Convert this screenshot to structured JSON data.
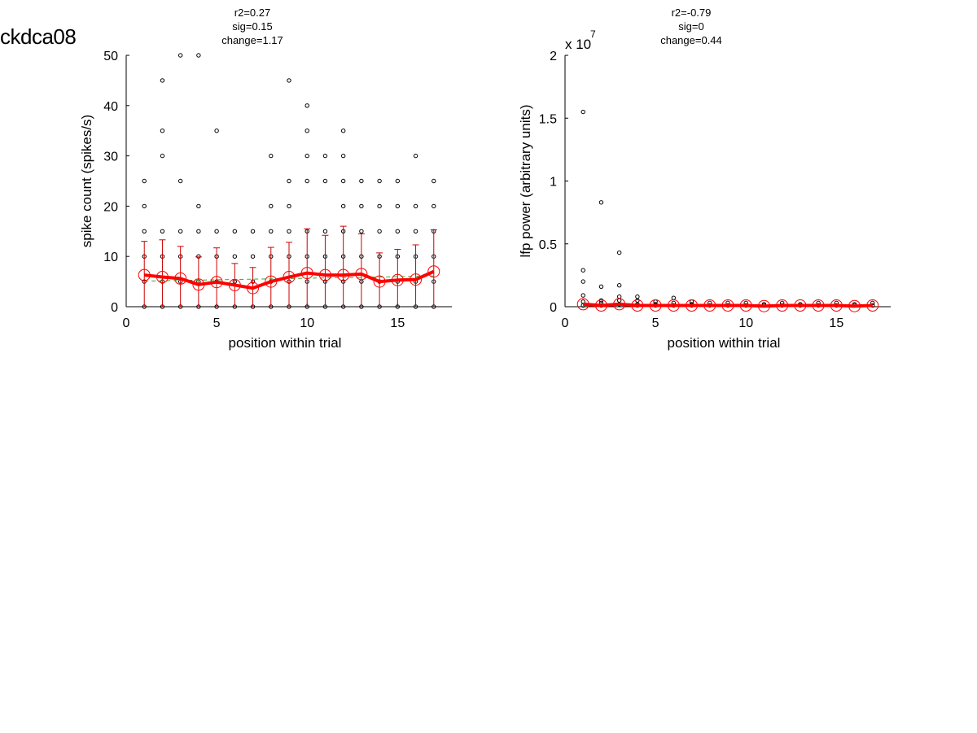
{
  "figure_title": "ckdca08",
  "chart_data": [
    {
      "type": "scatter",
      "title_lines": [
        "r2=0.27",
        "sig=0.15",
        "change=1.17"
      ],
      "xlabel": "position within trial",
      "ylabel": "spike count (spikes/s)",
      "xlim": [
        0,
        18
      ],
      "ylim": [
        0,
        50
      ],
      "xticks": [
        0,
        5,
        10,
        15
      ],
      "yticks": [
        0,
        10,
        20,
        30,
        40,
        50
      ],
      "xtick_labels": [
        "0",
        "5",
        "10",
        "15"
      ],
      "ytick_labels": [
        "0",
        "10",
        "20",
        "30",
        "40",
        "50"
      ],
      "exponent_label": "",
      "grid": false,
      "colors": {
        "points": "#000000",
        "mean": "#ff0000",
        "errorbar": "#cc0000",
        "fit": "#33aa33"
      },
      "points": [
        [
          1,
          0
        ],
        [
          1,
          5
        ],
        [
          1,
          10
        ],
        [
          1,
          15
        ],
        [
          1,
          20
        ],
        [
          1,
          25
        ],
        [
          2,
          0
        ],
        [
          2,
          5
        ],
        [
          2,
          10
        ],
        [
          2,
          15
        ],
        [
          2,
          30
        ],
        [
          2,
          35
        ],
        [
          2,
          45
        ],
        [
          3,
          0
        ],
        [
          3,
          5
        ],
        [
          3,
          10
        ],
        [
          3,
          15
        ],
        [
          3,
          25
        ],
        [
          3,
          50
        ],
        [
          4,
          0
        ],
        [
          4,
          5
        ],
        [
          4,
          10
        ],
        [
          4,
          15
        ],
        [
          4,
          20
        ],
        [
          4,
          50
        ],
        [
          5,
          0
        ],
        [
          5,
          5
        ],
        [
          5,
          10
        ],
        [
          5,
          15
        ],
        [
          5,
          35
        ],
        [
          6,
          0
        ],
        [
          6,
          5
        ],
        [
          6,
          10
        ],
        [
          6,
          15
        ],
        [
          7,
          0
        ],
        [
          7,
          5
        ],
        [
          7,
          10
        ],
        [
          7,
          15
        ],
        [
          8,
          0
        ],
        [
          8,
          5
        ],
        [
          8,
          10
        ],
        [
          8,
          15
        ],
        [
          8,
          20
        ],
        [
          8,
          30
        ],
        [
          9,
          0
        ],
        [
          9,
          5
        ],
        [
          9,
          10
        ],
        [
          9,
          15
        ],
        [
          9,
          20
        ],
        [
          9,
          25
        ],
        [
          9,
          45
        ],
        [
          10,
          0
        ],
        [
          10,
          5
        ],
        [
          10,
          10
        ],
        [
          10,
          15
        ],
        [
          10,
          25
        ],
        [
          10,
          30
        ],
        [
          10,
          35
        ],
        [
          10,
          40
        ],
        [
          11,
          0
        ],
        [
          11,
          5
        ],
        [
          11,
          10
        ],
        [
          11,
          15
        ],
        [
          11,
          25
        ],
        [
          11,
          30
        ],
        [
          12,
          0
        ],
        [
          12,
          5
        ],
        [
          12,
          10
        ],
        [
          12,
          15
        ],
        [
          12,
          20
        ],
        [
          12,
          25
        ],
        [
          12,
          30
        ],
        [
          12,
          35
        ],
        [
          13,
          0
        ],
        [
          13,
          5
        ],
        [
          13,
          10
        ],
        [
          13,
          15
        ],
        [
          13,
          20
        ],
        [
          13,
          25
        ],
        [
          14,
          0
        ],
        [
          14,
          5
        ],
        [
          14,
          10
        ],
        [
          14,
          15
        ],
        [
          14,
          20
        ],
        [
          14,
          25
        ],
        [
          15,
          0
        ],
        [
          15,
          5
        ],
        [
          15,
          10
        ],
        [
          15,
          15
        ],
        [
          15,
          20
        ],
        [
          15,
          25
        ],
        [
          16,
          0
        ],
        [
          16,
          5
        ],
        [
          16,
          10
        ],
        [
          16,
          15
        ],
        [
          16,
          20
        ],
        [
          16,
          30
        ],
        [
          17,
          0
        ],
        [
          17,
          5
        ],
        [
          17,
          10
        ],
        [
          17,
          15
        ],
        [
          17,
          20
        ],
        [
          17,
          25
        ]
      ],
      "mean_x": [
        1,
        2,
        3,
        4,
        5,
        6,
        7,
        8,
        9,
        10,
        11,
        12,
        13,
        14,
        15,
        16,
        17
      ],
      "mean_y": [
        6.3,
        5.9,
        5.6,
        4.4,
        4.9,
        4.3,
        3.7,
        5.0,
        5.9,
        6.7,
        6.3,
        6.3,
        6.5,
        5.0,
        5.3,
        5.4,
        7.0
      ],
      "error_upper": [
        13.0,
        13.3,
        12.0,
        9.9,
        11.7,
        8.6,
        7.8,
        11.8,
        12.8,
        15.5,
        14.2,
        16.0,
        14.5,
        10.7,
        11.4,
        12.3,
        15.3
      ],
      "fit_line": {
        "x": [
          1,
          17
        ],
        "y": [
          5.1,
          6.1
        ]
      }
    },
    {
      "type": "scatter",
      "title_lines": [
        "r2=-0.79",
        "sig=0",
        "change=0.44"
      ],
      "xlabel": "position within trial",
      "ylabel": "lfp power (arbitrary units)",
      "xlim": [
        0,
        18
      ],
      "ylim": [
        0,
        2
      ],
      "xticks": [
        0,
        5,
        10,
        15
      ],
      "yticks": [
        0,
        0.5,
        1,
        1.5,
        2
      ],
      "xtick_labels": [
        "0",
        "5",
        "10",
        "15"
      ],
      "ytick_labels": [
        "0",
        "0.5",
        "1",
        "1.5",
        "2"
      ],
      "exponent_label": "x 10",
      "exponent_power": "7",
      "grid": false,
      "colors": {
        "points": "#000000",
        "mean": "#ff0000",
        "errorbar": "#cc0000",
        "fit": "#33aa33"
      },
      "points": [
        [
          1,
          1.55
        ],
        [
          1,
          0.29
        ],
        [
          1,
          0.2
        ],
        [
          1,
          0.09
        ],
        [
          1,
          0.04
        ],
        [
          1,
          0.01
        ],
        [
          2,
          0.83
        ],
        [
          2,
          0.16
        ],
        [
          2,
          0.05
        ],
        [
          2,
          0.03
        ],
        [
          2,
          0.01
        ],
        [
          3,
          0.43
        ],
        [
          3,
          0.17
        ],
        [
          3,
          0.08
        ],
        [
          3,
          0.05
        ],
        [
          3,
          0.02
        ],
        [
          4,
          0.08
        ],
        [
          4,
          0.05
        ],
        [
          4,
          0.02
        ],
        [
          4,
          0.01
        ],
        [
          5,
          0.04
        ],
        [
          5,
          0.02
        ],
        [
          5,
          0.01
        ],
        [
          6,
          0.07
        ],
        [
          6,
          0.03
        ],
        [
          6,
          0.01
        ],
        [
          7,
          0.04
        ],
        [
          7,
          0.02
        ],
        [
          7,
          0.01
        ],
        [
          8,
          0.03
        ],
        [
          8,
          0.01
        ],
        [
          9,
          0.03
        ],
        [
          9,
          0.01
        ],
        [
          10,
          0.03
        ],
        [
          10,
          0.01
        ],
        [
          11,
          0.02
        ],
        [
          11,
          0.01
        ],
        [
          12,
          0.03
        ],
        [
          12,
          0.01
        ],
        [
          13,
          0.02
        ],
        [
          13,
          0.01
        ],
        [
          14,
          0.03
        ],
        [
          14,
          0.01
        ],
        [
          15,
          0.03
        ],
        [
          15,
          0.01
        ],
        [
          16,
          0.02
        ],
        [
          16,
          0.01
        ],
        [
          17,
          0.03
        ],
        [
          17,
          0.01
        ]
      ],
      "mean_x": [
        1,
        2,
        3,
        4,
        5,
        6,
        7,
        8,
        9,
        10,
        11,
        12,
        13,
        14,
        15,
        16,
        17
      ],
      "mean_y": [
        0.02,
        0.01,
        0.02,
        0.01,
        0.01,
        0.01,
        0.01,
        0.01,
        0.01,
        0.01,
        0.005,
        0.01,
        0.01,
        0.01,
        0.01,
        0.005,
        0.01
      ],
      "error_upper": [],
      "fit_line": {
        "x": [
          1,
          17
        ],
        "y": [
          0.015,
          0.008
        ]
      }
    }
  ]
}
